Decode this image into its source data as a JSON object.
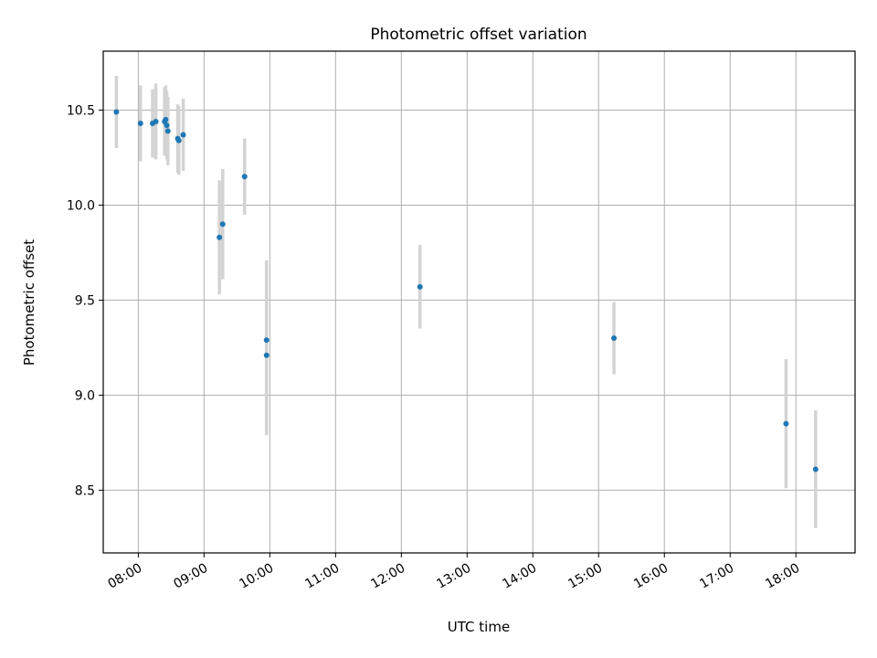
{
  "chart_data": {
    "type": "scatter",
    "title": "Photometric offset variation",
    "xlabel": "UTC time",
    "ylabel": "Photometric offset",
    "x_ticks": [
      "08:00",
      "09:00",
      "10:00",
      "11:00",
      "12:00",
      "13:00",
      "14:00",
      "15:00",
      "16:00",
      "17:00",
      "18:00"
    ],
    "y_ticks": [
      "8.5",
      "9.0",
      "9.5",
      "10.0",
      "10.5"
    ],
    "x_axis": "time of day (UTC)",
    "ylim": [
      8.17,
      10.81
    ],
    "xlim": [
      "07:28",
      "18:54"
    ],
    "grid": true,
    "point_color": "#1f77b4",
    "errorbar_color": "#d3d3d3",
    "points": [
      {
        "x": "07:40",
        "y": 10.49,
        "err": 0.19
      },
      {
        "x": "08:02",
        "y": 10.43,
        "err": 0.2
      },
      {
        "x": "08:13",
        "y": 10.43,
        "err": 0.18
      },
      {
        "x": "08:16",
        "y": 10.44,
        "err": 0.2
      },
      {
        "x": "08:24",
        "y": 10.44,
        "err": 0.18
      },
      {
        "x": "08:25",
        "y": 10.45,
        "err": 0.18
      },
      {
        "x": "08:26",
        "y": 10.42,
        "err": 0.18
      },
      {
        "x": "08:27",
        "y": 10.39,
        "err": 0.18
      },
      {
        "x": "08:36",
        "y": 10.35,
        "err": 0.18
      },
      {
        "x": "08:37",
        "y": 10.34,
        "err": 0.18
      },
      {
        "x": "08:41",
        "y": 10.37,
        "err": 0.19
      },
      {
        "x": "09:14",
        "y": 9.83,
        "err": 0.3
      },
      {
        "x": "09:17",
        "y": 9.9,
        "err": 0.29
      },
      {
        "x": "09:37",
        "y": 10.15,
        "err": 0.2
      },
      {
        "x": "09:57",
        "y": 9.29,
        "err": 0.42
      },
      {
        "x": "09:57",
        "y": 9.21,
        "err": 0.42
      },
      {
        "x": "12:17",
        "y": 9.57,
        "err": 0.22
      },
      {
        "x": "15:14",
        "y": 9.3,
        "err": 0.19
      },
      {
        "x": "17:51",
        "y": 8.85,
        "err": 0.34
      },
      {
        "x": "18:18",
        "y": 8.61,
        "err": 0.31
      }
    ]
  }
}
